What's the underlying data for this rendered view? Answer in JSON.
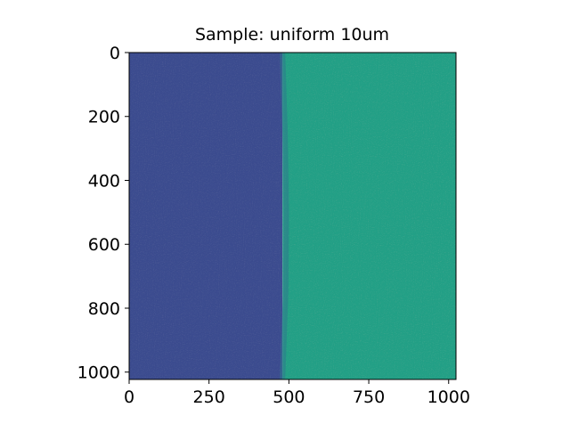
{
  "chart_data": {
    "type": "heatmap",
    "title": "Sample: uniform 10um",
    "xlabel": "",
    "ylabel": "",
    "xlim": [
      0,
      1023
    ],
    "ylim": [
      1023,
      0
    ],
    "x_ticks": [
      0,
      250,
      500,
      750,
      1000
    ],
    "x_tick_labels": [
      "0",
      "250",
      "500",
      "750",
      "1000"
    ],
    "y_ticks": [
      0,
      200,
      400,
      600,
      800,
      1000
    ],
    "y_tick_labels": [
      "0",
      "200",
      "400",
      "600",
      "800",
      "1000"
    ],
    "grid": false,
    "colormap": "viridis",
    "regions": [
      {
        "x_range": [
          0,
          480
        ],
        "color": "#3b4c8f"
      },
      {
        "x_range": [
          480,
          1023
        ],
        "color": "#21a086"
      }
    ],
    "edge_x_profile": [
      {
        "y": 0,
        "x": 480
      },
      {
        "y": 250,
        "x": 488
      },
      {
        "y": 500,
        "x": 492
      },
      {
        "y": 750,
        "x": 490
      },
      {
        "y": 1023,
        "x": 480
      }
    ]
  }
}
